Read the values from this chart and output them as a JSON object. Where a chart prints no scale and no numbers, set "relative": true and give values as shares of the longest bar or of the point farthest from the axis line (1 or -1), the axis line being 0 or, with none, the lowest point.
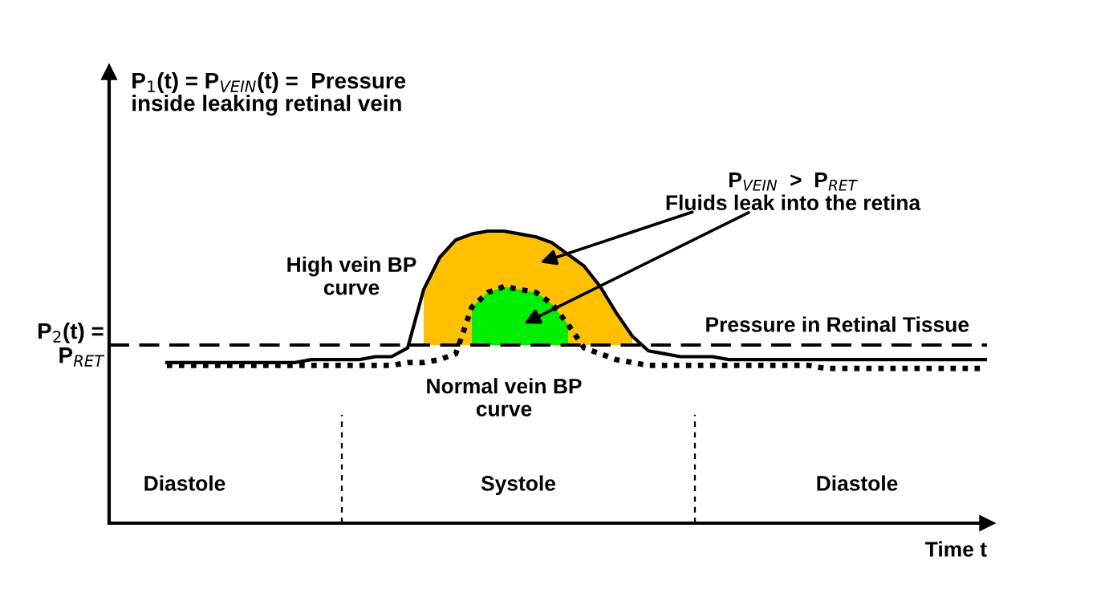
{
  "chart_data": {
    "type": "line",
    "relative": true,
    "xlabel": "Time t",
    "categories": [
      null,
      null,
      null,
      null,
      null,
      null,
      null,
      null,
      null,
      null,
      null,
      null,
      null,
      null,
      null,
      null,
      null,
      null,
      null,
      null,
      null,
      null,
      null,
      null,
      null,
      null,
      null,
      null,
      null,
      null,
      null,
      null,
      null,
      null,
      null,
      null,
      null,
      null,
      null,
      null,
      null,
      null,
      null,
      null,
      null,
      null,
      null,
      null,
      null,
      null,
      null,
      null
    ],
    "series": [
      {
        "name": "High vein BP\ncurve",
        "line_style": "solid",
        "color": "#000000",
        "values": [
          0.55,
          0.55,
          0.55,
          0.55,
          0.55,
          0.55,
          0.55,
          0.55,
          0.55,
          0.56,
          0.56,
          0.56,
          0.56,
          0.57,
          0.57,
          0.6,
          0.8,
          0.91,
          0.97,
          0.99,
          1,
          1,
          0.99,
          0.98,
          0.96,
          0.92,
          0.88,
          0.81,
          0.72,
          0.64,
          0.59,
          0.58,
          0.57,
          0.57,
          0.57,
          0.56,
          0.56,
          0.56,
          0.56,
          0.56,
          0.56,
          0.56,
          0.56,
          0.56,
          0.56,
          0.56,
          0.56,
          0.56,
          0.56,
          0.56,
          0.56,
          0.56
        ],
        "lower": [
          null,
          null,
          null,
          null,
          null,
          null,
          null,
          null,
          null,
          null,
          null,
          null,
          null,
          null,
          null,
          null,
          0.61,
          0.61,
          0.61,
          0.61,
          0.61,
          0.61,
          0.61,
          0.61,
          0.61,
          0.61,
          0.61,
          0.61,
          0.61,
          0.61,
          null,
          null,
          null,
          null,
          null,
          null,
          null,
          null,
          null,
          null,
          null,
          null,
          null,
          null,
          null,
          null,
          null,
          null,
          null,
          null,
          null,
          null
        ],
        "upper": [
          null,
          null,
          null,
          null,
          null,
          null,
          null,
          null,
          null,
          null,
          null,
          null,
          null,
          null,
          null,
          null,
          0.8,
          0.91,
          0.97,
          0.99,
          1,
          1,
          0.99,
          0.98,
          0.96,
          0.92,
          0.88,
          0.81,
          0.72,
          0.64,
          null,
          null,
          null,
          null,
          null,
          null,
          null,
          null,
          null,
          null,
          null,
          null,
          null,
          null,
          null,
          null,
          null,
          null,
          null,
          null,
          null,
          null
        ]
      },
      {
        "name": "Normal vein BP\ncurve",
        "line_style": "dotted",
        "color": "#000000",
        "values": [
          0.54,
          0.54,
          0.54,
          0.54,
          0.54,
          0.54,
          0.54,
          0.54,
          0.54,
          0.54,
          0.54,
          0.54,
          0.54,
          0.54,
          0.54,
          0.55,
          0.55,
          0.56,
          0.58,
          0.74,
          0.79,
          0.81,
          0.8,
          0.79,
          0.75,
          0.68,
          0.6,
          0.58,
          0.56,
          0.55,
          0.54,
          0.54,
          0.54,
          0.54,
          0.54,
          0.54,
          0.54,
          0.54,
          0.54,
          0.54,
          0.54,
          0.53,
          0.53,
          0.53,
          0.53,
          0.53,
          0.53,
          0.53,
          0.53,
          0.53,
          0.53,
          0.53
        ],
        "lower": [
          null,
          null,
          null,
          null,
          null,
          null,
          null,
          null,
          null,
          null,
          null,
          null,
          null,
          null,
          null,
          null,
          null,
          null,
          null,
          0.61,
          0.61,
          0.61,
          0.61,
          0.61,
          0.61,
          0.61,
          null,
          null,
          null,
          null,
          null,
          null,
          null,
          null,
          null,
          null,
          null,
          null,
          null,
          null,
          null,
          null,
          null,
          null,
          null,
          null,
          null,
          null,
          null,
          null,
          null,
          null
        ],
        "upper": [
          null,
          null,
          null,
          null,
          null,
          null,
          null,
          null,
          null,
          null,
          null,
          null,
          null,
          null,
          null,
          null,
          null,
          null,
          null,
          0.74,
          0.79,
          0.81,
          0.8,
          0.79,
          0.75,
          0.68,
          null,
          null,
          null,
          null,
          null,
          null,
          null,
          null,
          null,
          null,
          null,
          null,
          null,
          null,
          null,
          null,
          null,
          null,
          null,
          null,
          null,
          null,
          null,
          null,
          null,
          null
        ]
      }
    ],
    "ref_lines": [
      {
        "axis": "y",
        "value": 0.61,
        "label": "Pressure in Retinal Tissue",
        "line_style": "dashed",
        "color": "#000000"
      }
    ],
    "annotations": [
      "P$_{1}$(t) = P$_{VEIN}$(t) =  Pressure\ninside leaking retinal vein",
      "P$_{2}$(t) =\nP$_{RET}$",
      "P$_{VEIN}$  >  P$_{RET}$\nFluids leak into the retina",
      "Diastole",
      "Systole",
      "Diastole"
    ]
  }
}
